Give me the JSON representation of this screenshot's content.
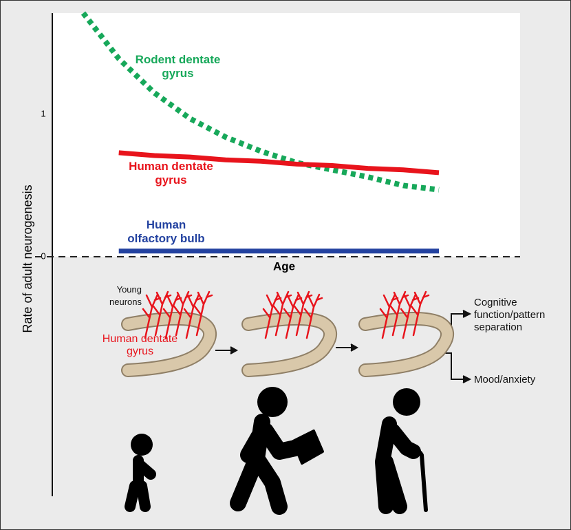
{
  "chart_data": {
    "type": "line",
    "x_label": "Age",
    "y_label": "Rate of adult neurogenesis",
    "categories": [
      null,
      null,
      null,
      null,
      null,
      null,
      null,
      null,
      null,
      null,
      null
    ],
    "series": [
      {
        "name": "Rodent dentate gyrus",
        "color": "#17a85a",
        "style": "dotted",
        "values": [
          1.71,
          1.39,
          1.15,
          0.97,
          0.84,
          0.74,
          0.66,
          0.61,
          0.56,
          0.5,
          0.47
        ]
      },
      {
        "name": "Human dentate gyrus",
        "color": "#e8141c",
        "style": "solid",
        "values": [
          null,
          0.73,
          0.71,
          0.7,
          0.68,
          0.67,
          0.65,
          0.64,
          0.62,
          0.61,
          0.59
        ]
      },
      {
        "name": "Human olfactory bulb",
        "color": "#2342a0",
        "style": "solid",
        "values": [
          null,
          0.04,
          0.04,
          0.04,
          0.04,
          0.04,
          0.04,
          0.04,
          0.04,
          0.04,
          0.04
        ]
      }
    ],
    "ylim": [
      0,
      1.71
    ],
    "yticks": [
      0,
      1
    ],
    "grid": false
  },
  "illustration": {
    "young_neurons": "Young neurons",
    "region": "Human dentate gyrus",
    "outcome_1": "Cognitive function/pattern separation",
    "outcome_2": "Mood/anxiety"
  }
}
